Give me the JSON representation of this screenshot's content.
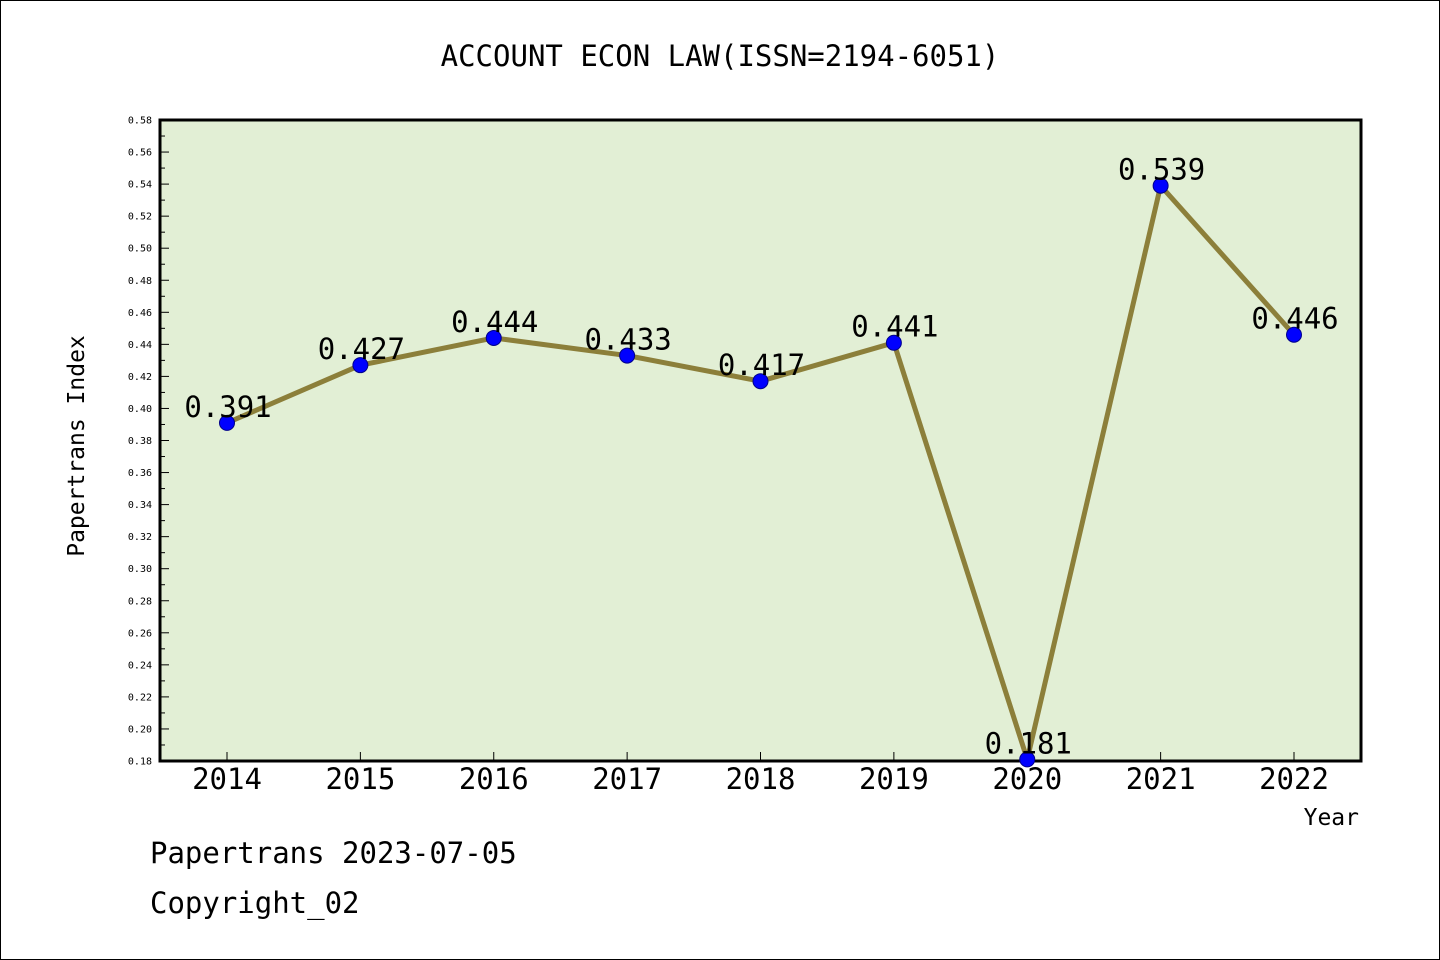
{
  "chart_data": {
    "type": "line",
    "title": "ACCOUNT ECON LAW(ISSN=2194-6051)",
    "xlabel": "Year",
    "ylabel": "Papertrans Index",
    "categories": [
      "2014",
      "2015",
      "2016",
      "2017",
      "2018",
      "2019",
      "2020",
      "2021",
      "2022"
    ],
    "series": [
      {
        "values": [
          0.391,
          0.427,
          0.444,
          0.433,
          0.417,
          0.441,
          0.181,
          0.539,
          0.446
        ]
      }
    ],
    "data_labels": [
      "0.391",
      "0.427",
      "0.444",
      "0.433",
      "0.417",
      "0.441",
      "0.181",
      "0.539",
      "0.446"
    ],
    "ylim": [
      0.18,
      0.58
    ],
    "yticks": [
      "0.18",
      "0.20",
      "0.22",
      "0.24",
      "0.26",
      "0.28",
      "0.30",
      "0.32",
      "0.34",
      "0.36",
      "0.38",
      "0.40",
      "0.42",
      "0.44",
      "0.46",
      "0.48",
      "0.50",
      "0.52",
      "0.54",
      "0.56",
      "0.58"
    ],
    "grid": false,
    "colors": {
      "plot_background": "#e2efd5",
      "line": "#8c7f3a",
      "marker": "#0000ff"
    }
  },
  "footer": {
    "line1": "Papertrans 2023-07-05",
    "line2": "Copyright_02"
  }
}
